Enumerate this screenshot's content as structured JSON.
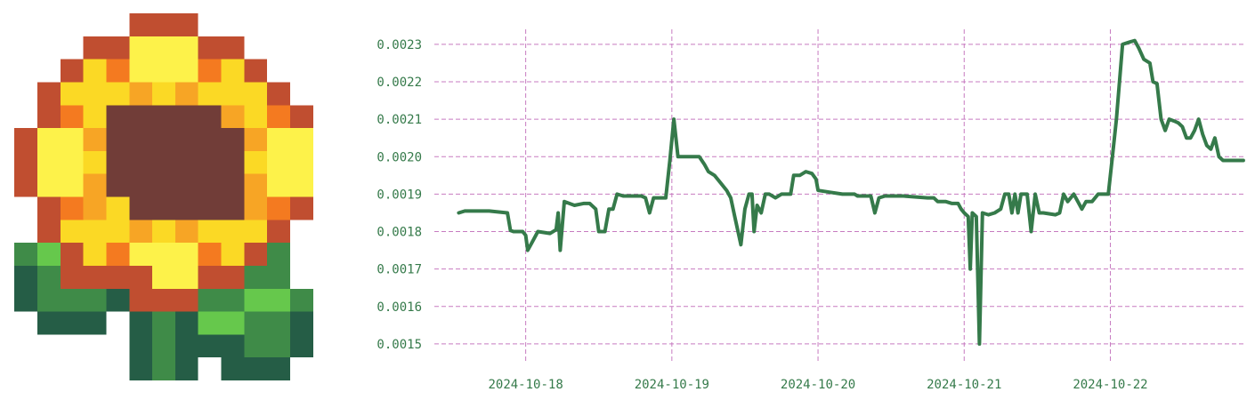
{
  "logo": {
    "icon": "pixel-sunflower-icon"
  },
  "chart_data": {
    "type": "line",
    "title": "",
    "xlabel": "",
    "ylabel": "",
    "x_type": "datetime",
    "ylim": [
      0.00145,
      0.00234
    ],
    "xlim": [
      "2024-10-17T09:00",
      "2024-10-22T22:00"
    ],
    "y_ticks": [
      "0.0015",
      "0.0016",
      "0.0017",
      "0.0018",
      "0.0019",
      "0.0020",
      "0.0021",
      "0.0022",
      "0.0023"
    ],
    "x_ticks": [
      "2024-10-18",
      "2024-10-19",
      "2024-10-20",
      "2024-10-21",
      "2024-10-22"
    ],
    "grid": true,
    "grid_style": "dashed",
    "line_color": "#357a4a",
    "grid_color": "#c77bc0",
    "tick_color": "#357a4a",
    "series": [
      {
        "points": [
          [
            "2024-10-17T13:00",
            0.00185
          ],
          [
            "2024-10-17T14:00",
            0.001855
          ],
          [
            "2024-10-17T18:00",
            0.001855
          ],
          [
            "2024-10-17T21:00",
            0.00185
          ],
          [
            "2024-10-17T21:30",
            0.001803
          ],
          [
            "2024-10-17T22:00",
            0.0018
          ],
          [
            "2024-10-17T23:30",
            0.0018
          ],
          [
            "2024-10-18T00:00",
            0.00179
          ],
          [
            "2024-10-18T00:20",
            0.00175
          ],
          [
            "2024-10-18T01:00",
            0.00177
          ],
          [
            "2024-10-18T02:00",
            0.0018
          ],
          [
            "2024-10-18T04:00",
            0.001795
          ],
          [
            "2024-10-18T05:00",
            0.001805
          ],
          [
            "2024-10-18T05:20",
            0.00185
          ],
          [
            "2024-10-18T05:40",
            0.00175
          ],
          [
            "2024-10-18T06:20",
            0.00188
          ],
          [
            "2024-10-18T08:00",
            0.00187
          ],
          [
            "2024-10-18T09:30",
            0.001875
          ],
          [
            "2024-10-18T10:30",
            0.001875
          ],
          [
            "2024-10-18T11:30",
            0.00186
          ],
          [
            "2024-10-18T12:00",
            0.0018
          ],
          [
            "2024-10-18T13:00",
            0.0018
          ],
          [
            "2024-10-18T13:40",
            0.00186
          ],
          [
            "2024-10-18T14:20",
            0.00186
          ],
          [
            "2024-10-18T15:00",
            0.0019
          ],
          [
            "2024-10-18T16:00",
            0.001895
          ],
          [
            "2024-10-18T19:00",
            0.001895
          ],
          [
            "2024-10-18T19:40",
            0.00189
          ],
          [
            "2024-10-18T20:20",
            0.00185
          ],
          [
            "2024-10-18T21:00",
            0.00189
          ],
          [
            "2024-10-18T22:00",
            0.00189
          ],
          [
            "2024-10-18T23:00",
            0.00189
          ],
          [
            "2024-10-18T23:40",
            0.00199
          ],
          [
            "2024-10-19T00:20",
            0.0021
          ],
          [
            "2024-10-19T01:00",
            0.002
          ],
          [
            "2024-10-19T02:00",
            0.002
          ],
          [
            "2024-10-19T04:30",
            0.002
          ],
          [
            "2024-10-19T05:20",
            0.00198
          ],
          [
            "2024-10-19T06:00",
            0.00196
          ],
          [
            "2024-10-19T07:00",
            0.00195
          ],
          [
            "2024-10-19T08:00",
            0.00193
          ],
          [
            "2024-10-19T09:00",
            0.00191
          ],
          [
            "2024-10-19T09:40",
            0.00189
          ],
          [
            "2024-10-19T10:20",
            0.00184
          ],
          [
            "2024-10-19T11:00",
            0.00179
          ],
          [
            "2024-10-19T11:20",
            0.001765
          ],
          [
            "2024-10-19T12:00",
            0.00186
          ],
          [
            "2024-10-19T12:40",
            0.0019
          ],
          [
            "2024-10-19T13:10",
            0.0019
          ],
          [
            "2024-10-19T13:30",
            0.0018
          ],
          [
            "2024-10-19T14:00",
            0.00187
          ],
          [
            "2024-10-19T14:40",
            0.00185
          ],
          [
            "2024-10-19T15:20",
            0.0019
          ],
          [
            "2024-10-19T16:00",
            0.0019
          ],
          [
            "2024-10-19T17:00",
            0.00189
          ],
          [
            "2024-10-19T18:00",
            0.0019
          ],
          [
            "2024-10-19T19:30",
            0.0019
          ],
          [
            "2024-10-19T20:00",
            0.00195
          ],
          [
            "2024-10-19T21:00",
            0.00195
          ],
          [
            "2024-10-19T22:00",
            0.00196
          ],
          [
            "2024-10-19T23:00",
            0.001955
          ],
          [
            "2024-10-19T23:40",
            0.00194
          ],
          [
            "2024-10-20T00:00",
            0.00191
          ],
          [
            "2024-10-20T02:00",
            0.001905
          ],
          [
            "2024-10-20T04:00",
            0.0019
          ],
          [
            "2024-10-20T06:00",
            0.0019
          ],
          [
            "2024-10-20T06:30",
            0.001895
          ],
          [
            "2024-10-20T08:00",
            0.001895
          ],
          [
            "2024-10-20T08:40",
            0.001895
          ],
          [
            "2024-10-20T09:20",
            0.00185
          ],
          [
            "2024-10-20T10:00",
            0.00189
          ],
          [
            "2024-10-20T11:00",
            0.001895
          ],
          [
            "2024-10-20T14:00",
            0.001895
          ],
          [
            "2024-10-20T18:00",
            0.00189
          ],
          [
            "2024-10-20T19:00",
            0.00189
          ],
          [
            "2024-10-20T19:40",
            0.00188
          ],
          [
            "2024-10-20T21:00",
            0.00188
          ],
          [
            "2024-10-20T22:00",
            0.001875
          ],
          [
            "2024-10-20T23:00",
            0.001875
          ],
          [
            "2024-10-20T23:30",
            0.00186
          ],
          [
            "2024-10-21T00:00",
            0.00185
          ],
          [
            "2024-10-21T00:40",
            0.00184
          ],
          [
            "2024-10-21T01:00",
            0.0017
          ],
          [
            "2024-10-21T01:20",
            0.00185
          ],
          [
            "2024-10-21T02:00",
            0.00184
          ],
          [
            "2024-10-21T02:30",
            0.0015
          ],
          [
            "2024-10-21T03:00",
            0.00185
          ],
          [
            "2024-10-21T04:00",
            0.001845
          ],
          [
            "2024-10-21T05:00",
            0.00185
          ],
          [
            "2024-10-21T06:00",
            0.00186
          ],
          [
            "2024-10-21T06:40",
            0.0019
          ],
          [
            "2024-10-21T07:20",
            0.0019
          ],
          [
            "2024-10-21T07:50",
            0.00185
          ],
          [
            "2024-10-21T08:20",
            0.0019
          ],
          [
            "2024-10-21T08:50",
            0.00185
          ],
          [
            "2024-10-21T09:20",
            0.0019
          ],
          [
            "2024-10-21T10:20",
            0.0019
          ],
          [
            "2024-10-21T11:00",
            0.0018
          ],
          [
            "2024-10-21T11:40",
            0.0019
          ],
          [
            "2024-10-21T12:20",
            0.00185
          ],
          [
            "2024-10-21T13:00",
            0.00185
          ],
          [
            "2024-10-21T15:00",
            0.001845
          ],
          [
            "2024-10-21T15:40",
            0.00185
          ],
          [
            "2024-10-21T16:20",
            0.0019
          ],
          [
            "2024-10-21T17:00",
            0.00188
          ],
          [
            "2024-10-21T18:00",
            0.0019
          ],
          [
            "2024-10-21T18:40",
            0.00188
          ],
          [
            "2024-10-21T19:20",
            0.00186
          ],
          [
            "2024-10-21T20:00",
            0.00188
          ],
          [
            "2024-10-21T21:00",
            0.00188
          ],
          [
            "2024-10-21T22:00",
            0.0019
          ],
          [
            "2024-10-21T23:40",
            0.0019
          ],
          [
            "2024-10-22T00:20",
            0.002
          ],
          [
            "2024-10-22T01:00",
            0.0021
          ],
          [
            "2024-10-22T02:00",
            0.0023
          ],
          [
            "2024-10-22T03:00",
            0.002305
          ],
          [
            "2024-10-22T04:00",
            0.00231
          ],
          [
            "2024-10-22T04:40",
            0.00229
          ],
          [
            "2024-10-22T05:30",
            0.00226
          ],
          [
            "2024-10-22T06:30",
            0.00225
          ],
          [
            "2024-10-22T07:00",
            0.0022
          ],
          [
            "2024-10-22T07:40",
            0.002195
          ],
          [
            "2024-10-22T08:20",
            0.0021
          ],
          [
            "2024-10-22T09:00",
            0.00207
          ],
          [
            "2024-10-22T09:40",
            0.0021
          ],
          [
            "2024-10-22T10:30",
            0.002095
          ],
          [
            "2024-10-22T11:10",
            0.00209
          ],
          [
            "2024-10-22T11:50",
            0.00208
          ],
          [
            "2024-10-22T12:30",
            0.00205
          ],
          [
            "2024-10-22T13:10",
            0.00205
          ],
          [
            "2024-10-22T13:50",
            0.00207
          ],
          [
            "2024-10-22T14:30",
            0.0021
          ],
          [
            "2024-10-22T15:10",
            0.00206
          ],
          [
            "2024-10-22T15:50",
            0.00203
          ],
          [
            "2024-10-22T16:30",
            0.00202
          ],
          [
            "2024-10-22T17:10",
            0.00205
          ],
          [
            "2024-10-22T17:50",
            0.002
          ],
          [
            "2024-10-22T18:30",
            0.00199
          ],
          [
            "2024-10-22T19:10",
            0.00199
          ],
          [
            "2024-10-22T19:50",
            0.00199
          ],
          [
            "2024-10-22T20:30",
            0.00199
          ],
          [
            "2024-10-22T21:10",
            0.00199
          ],
          [
            "2024-10-22T21:50",
            0.00199
          ]
        ]
      }
    ]
  }
}
